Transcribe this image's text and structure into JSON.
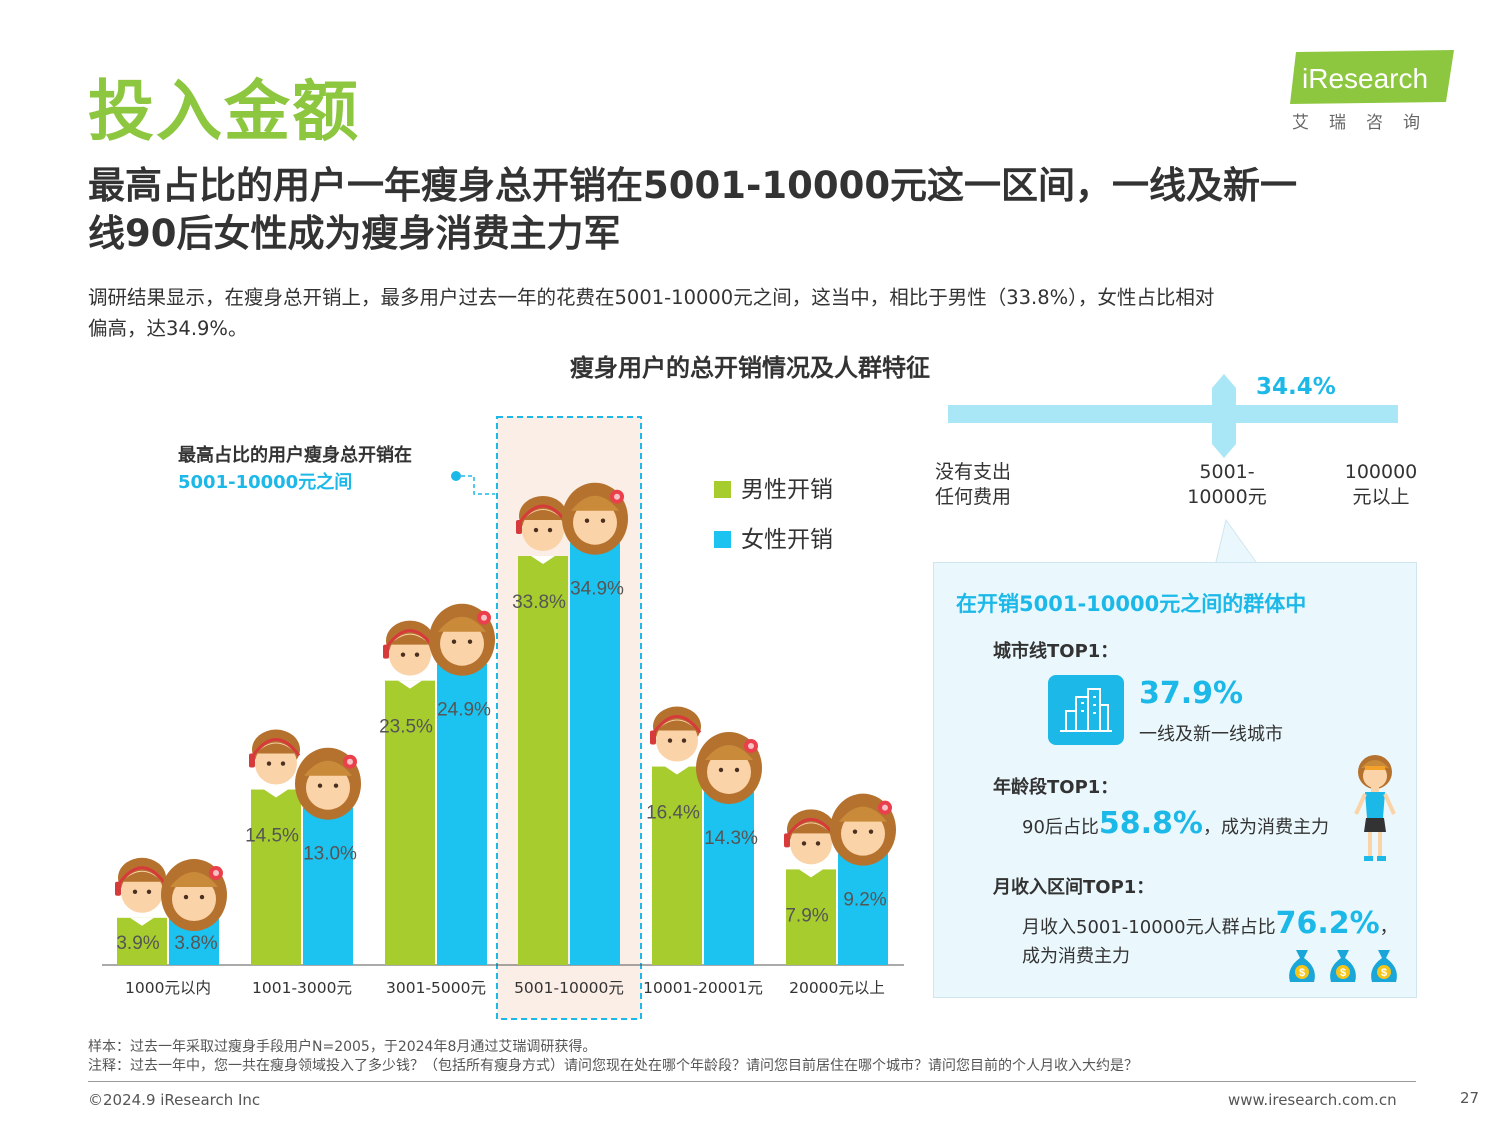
{
  "header": {
    "title": "投入金额",
    "logo_text": "iResearch",
    "logo_sub": "艾瑞咨询"
  },
  "headline": {
    "line1": "最高占比的用户一年瘦身总开销在5001-10000元这一区间，一线及新一",
    "line2": "线90后女性成为瘦身消费主力军"
  },
  "description": {
    "line1": "调研结果显示，在瘦身总开销上，最多用户过去一年的花费在5001-10000元之间，这当中，相比于男性（33.8%），女性占比相对",
    "line2": "偏高，达34.9%。"
  },
  "chart_data": {
    "type": "bar",
    "title": "瘦身用户的总开销情况及人群特征",
    "categories": [
      "1000元以内",
      "1001-3000元",
      "3001-5000元",
      "5001-10000元",
      "10001-20001元",
      "20000元以上"
    ],
    "series": [
      {
        "name": "男性开销",
        "color": "#a7cc2d",
        "values": [
          3.9,
          14.5,
          23.5,
          33.8,
          16.4,
          7.9
        ],
        "labels": [
          "3.9%",
          "14.5%",
          "23.5%",
          "33.8%",
          "16.4%",
          "7.9%"
        ]
      },
      {
        "name": "女性开销",
        "color": "#1cc3f0",
        "values": [
          3.8,
          13.0,
          24.9,
          34.9,
          14.3,
          9.2
        ],
        "labels": [
          "3.8%",
          "13.0%",
          "24.9%",
          "34.9%",
          "14.3%",
          "9.2%"
        ]
      }
    ],
    "highlight_category": "5001-10000元",
    "callout": {
      "line1": "最高占比的用户瘦身总开销在",
      "line2": "5001-10000元之间"
    }
  },
  "range_indicator": {
    "value": "34.4%",
    "left_label": [
      "没有支出",
      "任何费用"
    ],
    "mid_label": [
      "5001-",
      "10000元"
    ],
    "right_label": [
      "100000",
      "元以上"
    ]
  },
  "panel": {
    "title": "在开销5001-10000元之间的群体中",
    "city_label": "城市线TOP1：",
    "city_value": "37.9%",
    "city_text": "一线及新一线城市",
    "age_label": "年龄段TOP1：",
    "age_prefix": "90后占比",
    "age_value": "58.8%",
    "age_suffix": "，成为消费主力",
    "income_label": "月收入区间TOP1：",
    "income_prefix": "月收入5001-10000元人群占比",
    "income_value": "76.2%",
    "income_suffix": "，",
    "income_line2": "成为消费主力",
    "colors": {
      "accent": "#1cb8e8",
      "panel_bg": "#eaf8fd"
    }
  },
  "notes": {
    "sample": "样本：过去一年采取过瘦身手段用户N=2005，于2024年8月通过艾瑞调研获得。",
    "comment": "注释：过去一年中，您一共在瘦身领域投入了多少钱？（包括所有瘦身方式）请问您现在处在哪个年龄段？请问您目前居住在哪个城市？请问您目前的个人月收入大约是？"
  },
  "footer": {
    "copyright": "©2024.9 iResearch Inc",
    "site": "www.iresearch.com.cn",
    "page": "27"
  }
}
